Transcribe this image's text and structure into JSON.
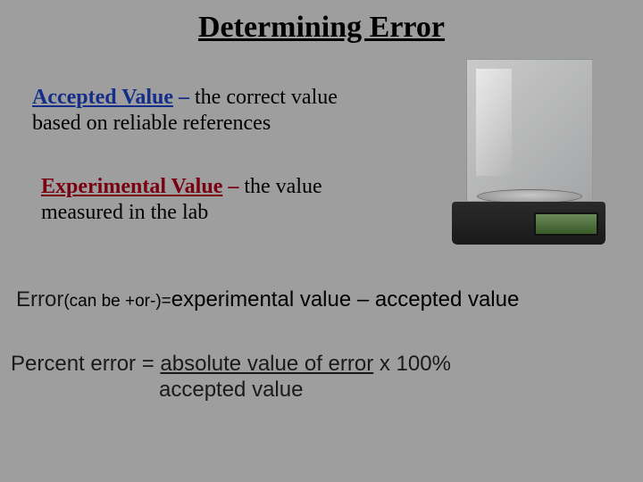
{
  "title": "Determining Error",
  "accepted": {
    "term": "Accepted Value",
    "dash": " – ",
    "rest": "the correct value",
    "line2": "based on reliable references",
    "term_color": "#132d8a"
  },
  "experimental": {
    "term": "Experimental Value",
    "dash": " – ",
    "rest": "the value",
    "line2": "measured in the lab",
    "term_color": "#7a0011"
  },
  "error_line": {
    "lead": "Error",
    "paren": "(can be +or-)=",
    "rest": "experimental value – accepted value"
  },
  "percent": {
    "lead": "Percent error = ",
    "numer": "absolute value of error",
    "after": " x 100%",
    "denom": "accepted value"
  },
  "image": {
    "name": "analytical-balance",
    "base_color": "#1a1a1a",
    "display_color": "#3a5a2a"
  },
  "style": {
    "background_color": "#9e9e9e",
    "title_fontsize": 34,
    "body_fontsize": 24,
    "small_fontsize": 19,
    "serif_font": "Comic Sans MS",
    "sans_font": "Arial"
  }
}
